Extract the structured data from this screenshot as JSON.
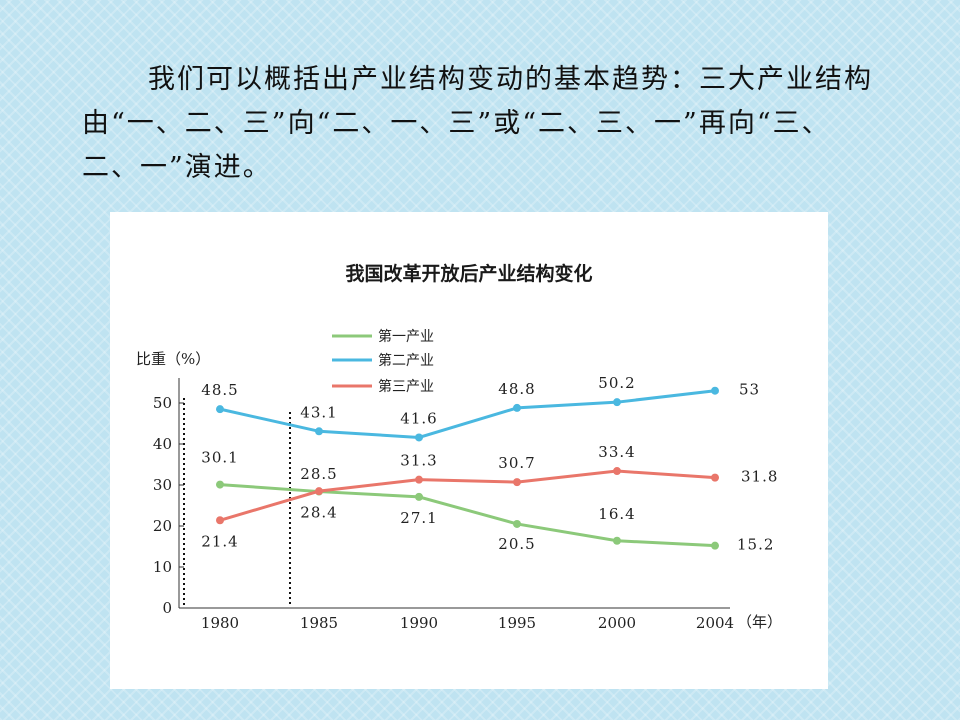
{
  "slide": {
    "text": "我们可以概括出产业结构变动的基本趋势：三大产业结构由“一、二、三”向“二、一、三”或“二、三、一”再向“三、二、一”演进。"
  },
  "chart_data": {
    "type": "line",
    "title": "我国改革开放后产业结构变化",
    "ylabel": "比重（%）",
    "xlabel": "（年）",
    "categories": [
      "1980",
      "1985",
      "1990",
      "1995",
      "2000",
      "2004"
    ],
    "yticks": [
      "0",
      "10",
      "20",
      "30",
      "40",
      "50"
    ],
    "ylim": [
      0,
      60
    ],
    "series": [
      {
        "name": "第一产业",
        "color": "#8cc97a",
        "values": [
          30.1,
          28.4,
          27.1,
          20.5,
          16.4,
          15.2
        ],
        "labels": [
          "30.1",
          "28.4",
          "27.1",
          "20.5",
          "16.4",
          "15.2"
        ]
      },
      {
        "name": "第二产业",
        "color": "#4ab8e0",
        "values": [
          48.5,
          43.1,
          41.6,
          48.8,
          50.2,
          53
        ],
        "labels": [
          "48.5",
          "43.1",
          "41.6",
          "48.8",
          "50.2",
          "53"
        ]
      },
      {
        "name": "第三产业",
        "color": "#e9766a",
        "values": [
          21.4,
          28.5,
          31.3,
          30.7,
          33.4,
          31.8
        ],
        "labels": [
          "21.4",
          "28.5",
          "31.3",
          "30.7",
          "33.4",
          "31.8"
        ]
      }
    ],
    "legend_position": "top",
    "grid": false
  }
}
